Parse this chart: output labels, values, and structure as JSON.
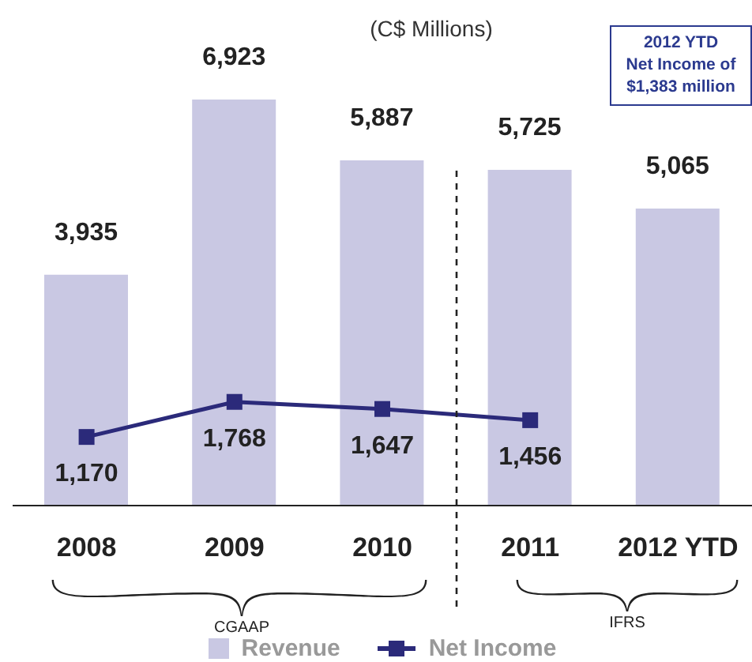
{
  "chart_data": {
    "type": "bar",
    "subtitle": "(C$ Millions)",
    "categories": [
      "2008",
      "2009",
      "2010",
      "2011",
      "2012 YTD"
    ],
    "series": [
      {
        "name": "Revenue",
        "color": "#c9c8e3",
        "values": [
          3935,
          6923,
          5887,
          5725,
          5065
        ],
        "value_labels": [
          "3,935",
          "6,923",
          "5,887",
          "5,725",
          "5,065"
        ]
      },
      {
        "name": "Net Income",
        "type": "line",
        "color": "#2b2a7a",
        "values": [
          1170,
          1768,
          1647,
          1456,
          null
        ],
        "value_labels": [
          "1,170",
          "1,768",
          "1,647",
          "1,456",
          null
        ]
      }
    ],
    "marker": "square",
    "legend": "bottom",
    "annotations": [
      "2012 YTD\nNet Income of\n$1,383 million",
      "CGAAP",
      "IFRS"
    ]
  }
}
